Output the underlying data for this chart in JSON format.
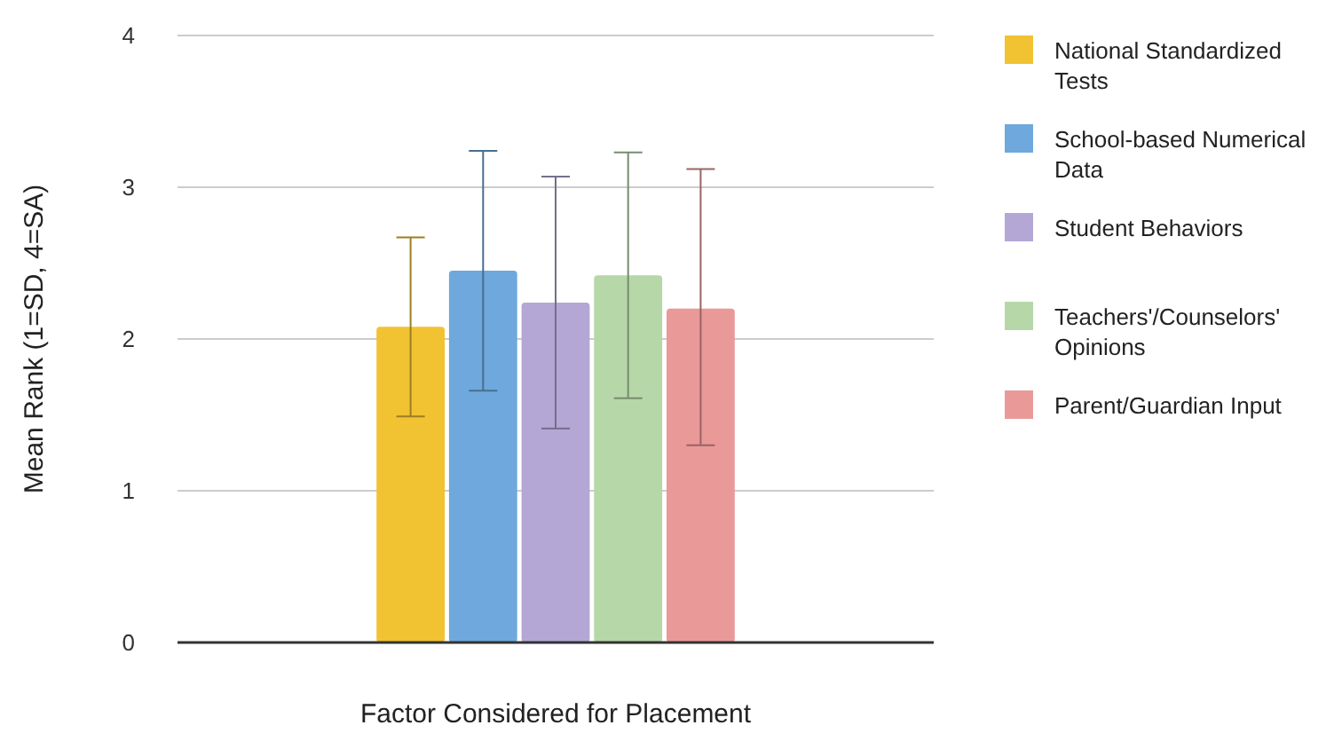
{
  "chart_data": {
    "type": "bar",
    "xlabel": "Factor Considered for Placement",
    "ylabel": "Mean Rank (1=SD, 4=SA)",
    "categories": [
      null
    ],
    "series": [
      {
        "name": "National Standardized Tests",
        "color": "#f1c232",
        "values": [
          2.08
        ],
        "errors": [
          [
            1.49,
            2.67
          ]
        ]
      },
      {
        "name": "School-based Numerical Data",
        "color": "#6fa8dc",
        "values": [
          2.45
        ],
        "errors": [
          [
            1.66,
            3.24
          ]
        ]
      },
      {
        "name": "Student Behaviors",
        "color": "#b4a7d6",
        "values": [
          2.24
        ],
        "errors": [
          [
            1.41,
            3.07
          ]
        ]
      },
      {
        "name": "Teachers'/Counselors' Opinions",
        "color": "#b6d7a8",
        "values": [
          2.42
        ],
        "errors": [
          [
            1.61,
            3.23
          ]
        ]
      },
      {
        "name": "Parent/Guardian Input",
        "color": "#ea9999",
        "values": [
          2.2
        ],
        "errors": [
          [
            1.3,
            3.12
          ]
        ]
      }
    ],
    "ylim": [
      0,
      4
    ],
    "yticks": [
      0,
      1,
      2,
      3,
      4
    ],
    "grid": "y",
    "legend": "right"
  }
}
